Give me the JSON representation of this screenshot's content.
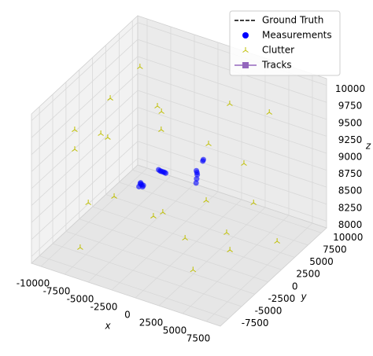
{
  "chart_data": {
    "type": "scatter3d",
    "xlabel": "x",
    "ylabel": "y",
    "zlabel": "z",
    "xlim": [
      -11000,
      9000
    ],
    "ylim": [
      -9000,
      11000
    ],
    "zlim": [
      7900,
      10100
    ],
    "xticks": [
      -10000,
      -7500,
      -5000,
      -2500,
      0,
      2500,
      5000,
      7500
    ],
    "yticks": [
      -7500,
      -5000,
      -2500,
      0,
      2500,
      5000,
      7500,
      10000
    ],
    "zticks": [
      8000,
      8250,
      8500,
      8750,
      9000,
      9250,
      9500,
      9750,
      10000
    ],
    "grid": true,
    "legend": "upper right",
    "series": [
      {
        "name": "Ground Truth",
        "color": "#000000",
        "style": "dashed-line",
        "x": [],
        "y": [],
        "z": []
      },
      {
        "name": "Measurements",
        "color": "#0000ff",
        "style": "dot",
        "x": [
          -4400,
          -4300,
          -4180,
          -4050,
          -4250,
          -4100,
          -3950,
          -3850,
          -3780,
          -3650,
          -3550,
          -3450,
          -600,
          -560,
          -520,
          -580,
          -540,
          20,
          60
        ],
        "y": [
          -500,
          -420,
          -380,
          -300,
          -450,
          -340,
          2400,
          2500,
          2600,
          2700,
          2800,
          2850,
          3500,
          3540,
          3580,
          3520,
          3560,
          3660,
          3700
        ],
        "z": [
          8720,
          8760,
          8750,
          8740,
          8780,
          8720,
          8780,
          8760,
          8750,
          8740,
          8730,
          8720,
          8660,
          8720,
          8780,
          8840,
          8810,
          9000,
          9020
        ]
      },
      {
        "name": "Clutter",
        "color": "#bfbf00",
        "style": "tri",
        "x": [
          -7780,
          -8700,
          -10080,
          -9680,
          -7720,
          -7480,
          -5000,
          -4220,
          -3980,
          900,
          2320,
          5500,
          4680,
          -6420,
          -7900,
          -2960,
          -2560,
          1080,
          5600,
          -7900,
          100,
          3500,
          3960,
          8160,
          2360
        ],
        "y": [
          5700,
          1740,
          -2500,
          -3200,
          -1780,
          -900,
          4040,
          3420,
          2940,
          3180,
          4640,
          6440,
          3120,
          -1580,
          -3820,
          -340,
          720,
          2420,
          3300,
          -5340,
          180,
          1960,
          1760,
          3180,
          -2340
        ],
        "z": [
          9880,
          9660,
          9440,
          9220,
          9440,
          9330,
          9550,
          9550,
          9330,
          9330,
          9880,
          9770,
          9220,
          8560,
          8560,
          8340,
          8340,
          8560,
          8670,
          8010,
          8120,
          8230,
          8010,
          8230,
          7940
        ]
      },
      {
        "name": "Tracks",
        "color": "#9467bd",
        "style": "line-square",
        "x": [],
        "y": [],
        "z": []
      }
    ]
  }
}
